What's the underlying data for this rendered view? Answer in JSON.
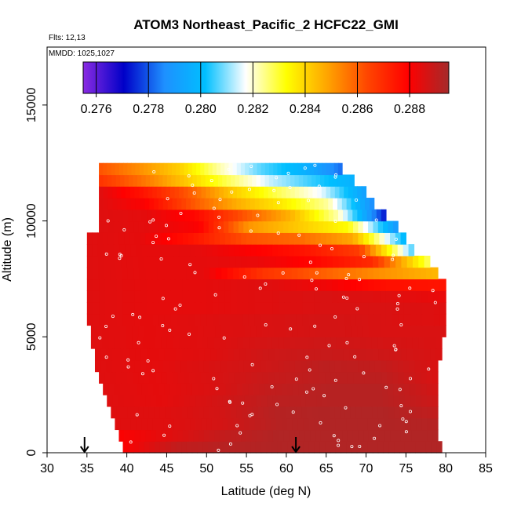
{
  "chart_data": {
    "type": "heatmap",
    "title": "ATOM3 Northeast_Pacific_2 HCFC22_GMI",
    "annotations": [
      "Flts: 12,13",
      "MMDD: 1025,1027"
    ],
    "xlabel": "Latitude (deg N)",
    "ylabel": "Altitude (m)",
    "xlim": [
      30,
      85
    ],
    "ylim": [
      0,
      17500
    ],
    "xticks": [
      "30",
      "35",
      "40",
      "45",
      "50",
      "55",
      "60",
      "65",
      "70",
      "75",
      "80",
      "85"
    ],
    "yticks": [
      "0",
      "5000",
      "10000",
      "15000"
    ],
    "colorbar": {
      "ticks": [
        "0.276",
        "0.278",
        "0.280",
        "0.282",
        "0.284",
        "0.286",
        "0.288"
      ],
      "range": [
        0.2755,
        0.2895
      ],
      "colors": [
        "#8a2be2",
        "#0000c8",
        "#1e90ff",
        "#00bfff",
        "#ffffff",
        "#ffff00",
        "#ffa500",
        "#ff4500",
        "#ff0000",
        "#a52a2a"
      ]
    },
    "grid": false,
    "legend_position": "top",
    "arrows_at_latitude": [
      34.7,
      61.2
    ],
    "altitude_bins": [
      {
        "altitude": 250,
        "lat_range": [
          39.5,
          79.5
        ],
        "values": [
          0.288,
          0.289,
          0.2892,
          0.2893,
          0.2893,
          0.2893,
          0.2893
        ]
      },
      {
        "altitude": 750,
        "lat_range": [
          39.0,
          79.0
        ],
        "values": [
          0.288,
          0.2885,
          0.289,
          0.2893,
          0.2893,
          0.2893,
          0.2893
        ]
      },
      {
        "altitude": 1250,
        "lat_range": [
          38.5,
          79.0
        ],
        "values": [
          0.2885,
          0.2885,
          0.2887,
          0.2892,
          0.2893,
          0.2893,
          0.2892
        ]
      },
      {
        "altitude": 1750,
        "lat_range": [
          38.0,
          79.0
        ],
        "values": [
          0.2885,
          0.2885,
          0.2887,
          0.2892,
          0.2893,
          0.2893,
          0.289
        ]
      },
      {
        "altitude": 2250,
        "lat_range": [
          37.5,
          79.0
        ],
        "values": [
          0.2885,
          0.2884,
          0.2887,
          0.2891,
          0.2892,
          0.2892,
          0.2888
        ]
      },
      {
        "altitude": 2750,
        "lat_range": [
          37.0,
          79.0
        ],
        "values": [
          0.2885,
          0.2884,
          0.2886,
          0.289,
          0.2892,
          0.2892,
          0.2887
        ]
      },
      {
        "altitude": 3250,
        "lat_range": [
          36.5,
          79.0
        ],
        "values": [
          0.2885,
          0.2884,
          0.2886,
          0.2889,
          0.2891,
          0.2891,
          0.2886
        ]
      },
      {
        "altitude": 3750,
        "lat_range": [
          36.0,
          79.0
        ],
        "values": [
          0.2885,
          0.2884,
          0.2886,
          0.2888,
          0.2891,
          0.289,
          0.2886
        ]
      },
      {
        "altitude": 4250,
        "lat_range": [
          36.0,
          79.5
        ],
        "values": [
          0.2885,
          0.2884,
          0.2885,
          0.2888,
          0.2889,
          0.2888,
          0.2886
        ]
      },
      {
        "altitude": 4750,
        "lat_range": [
          35.5,
          79.5
        ],
        "values": [
          0.2885,
          0.2884,
          0.2885,
          0.2887,
          0.2888,
          0.2887,
          0.2886
        ]
      },
      {
        "altitude": 5250,
        "lat_range": [
          35.5,
          80.0
        ],
        "values": [
          0.2885,
          0.2884,
          0.2885,
          0.2886,
          0.2887,
          0.2886,
          0.2886
        ]
      },
      {
        "altitude": 5750,
        "lat_range": [
          35.0,
          80.0
        ],
        "values": [
          0.2885,
          0.2884,
          0.2885,
          0.2886,
          0.2887,
          0.2886,
          0.2885
        ]
      },
      {
        "altitude": 6250,
        "lat_range": [
          35.0,
          80.0
        ],
        "values": [
          0.2885,
          0.2884,
          0.2884,
          0.2885,
          0.2886,
          0.2886,
          0.2885
        ]
      },
      {
        "altitude": 6750,
        "lat_range": [
          35.0,
          80.0
        ],
        "values": [
          0.2885,
          0.2884,
          0.2884,
          0.2885,
          0.2886,
          0.2885,
          0.2883
        ]
      },
      {
        "altitude": 7250,
        "lat_range": [
          35.0,
          80.0
        ],
        "values": [
          0.2885,
          0.2884,
          0.2884,
          0.2885,
          0.2882,
          0.2876,
          0.2875
        ]
      },
      {
        "altitude": 7750,
        "lat_range": [
          35.0,
          79.0
        ],
        "values": [
          0.2885,
          0.2884,
          0.2884,
          0.2868,
          0.286,
          0.2852,
          0.2845
        ]
      },
      {
        "altitude": 8250,
        "lat_range": [
          35.0,
          78.0
        ],
        "values": [
          0.2885,
          0.2884,
          0.2884,
          0.2883,
          0.2878,
          0.287,
          0.2826
        ]
      },
      {
        "altitude": 8750,
        "lat_range": [
          35.0,
          76.0
        ],
        "values": [
          0.2885,
          0.2884,
          0.2884,
          0.288,
          0.2875,
          0.2866,
          0.2805
        ]
      },
      {
        "altitude": 9250,
        "lat_range": [
          35.0,
          75.0
        ],
        "values": [
          0.2885,
          0.2884,
          0.2875,
          0.2862,
          0.2858,
          0.2848,
          0.2798
        ]
      },
      {
        "altitude": 9750,
        "lat_range": [
          36.5,
          74.0
        ],
        "values": [
          0.2885,
          0.2884,
          0.288,
          0.2851,
          0.2842,
          0.2833,
          0.2788
        ]
      },
      {
        "altitude": 10250,
        "lat_range": [
          36.5,
          72.5
        ],
        "values": [
          0.2885,
          0.2884,
          0.2878,
          0.2862,
          0.2846,
          0.2822,
          0.2772
        ]
      },
      {
        "altitude": 10750,
        "lat_range": [
          36.5,
          71.0
        ],
        "values": [
          0.2885,
          0.288,
          0.2862,
          0.2847,
          0.2836,
          0.2823,
          0.2785
        ]
      },
      {
        "altitude": 11250,
        "lat_range": [
          36.5,
          70.0
        ],
        "values": [
          0.2885,
          0.2875,
          0.2861,
          0.2842,
          0.2828,
          0.2816,
          0.2791
        ]
      },
      {
        "altitude": 11750,
        "lat_range": [
          36.5,
          68.5
        ],
        "values": [
          0.2868,
          0.2857,
          0.2843,
          0.2828,
          0.2814,
          0.2805,
          0.2797
        ]
      },
      {
        "altitude": 12250,
        "lat_range": [
          36.5,
          67.0
        ],
        "values": [
          0.2862,
          0.2852,
          0.2841,
          0.2822,
          0.2807,
          0.2798,
          0.2782
        ]
      }
    ]
  }
}
